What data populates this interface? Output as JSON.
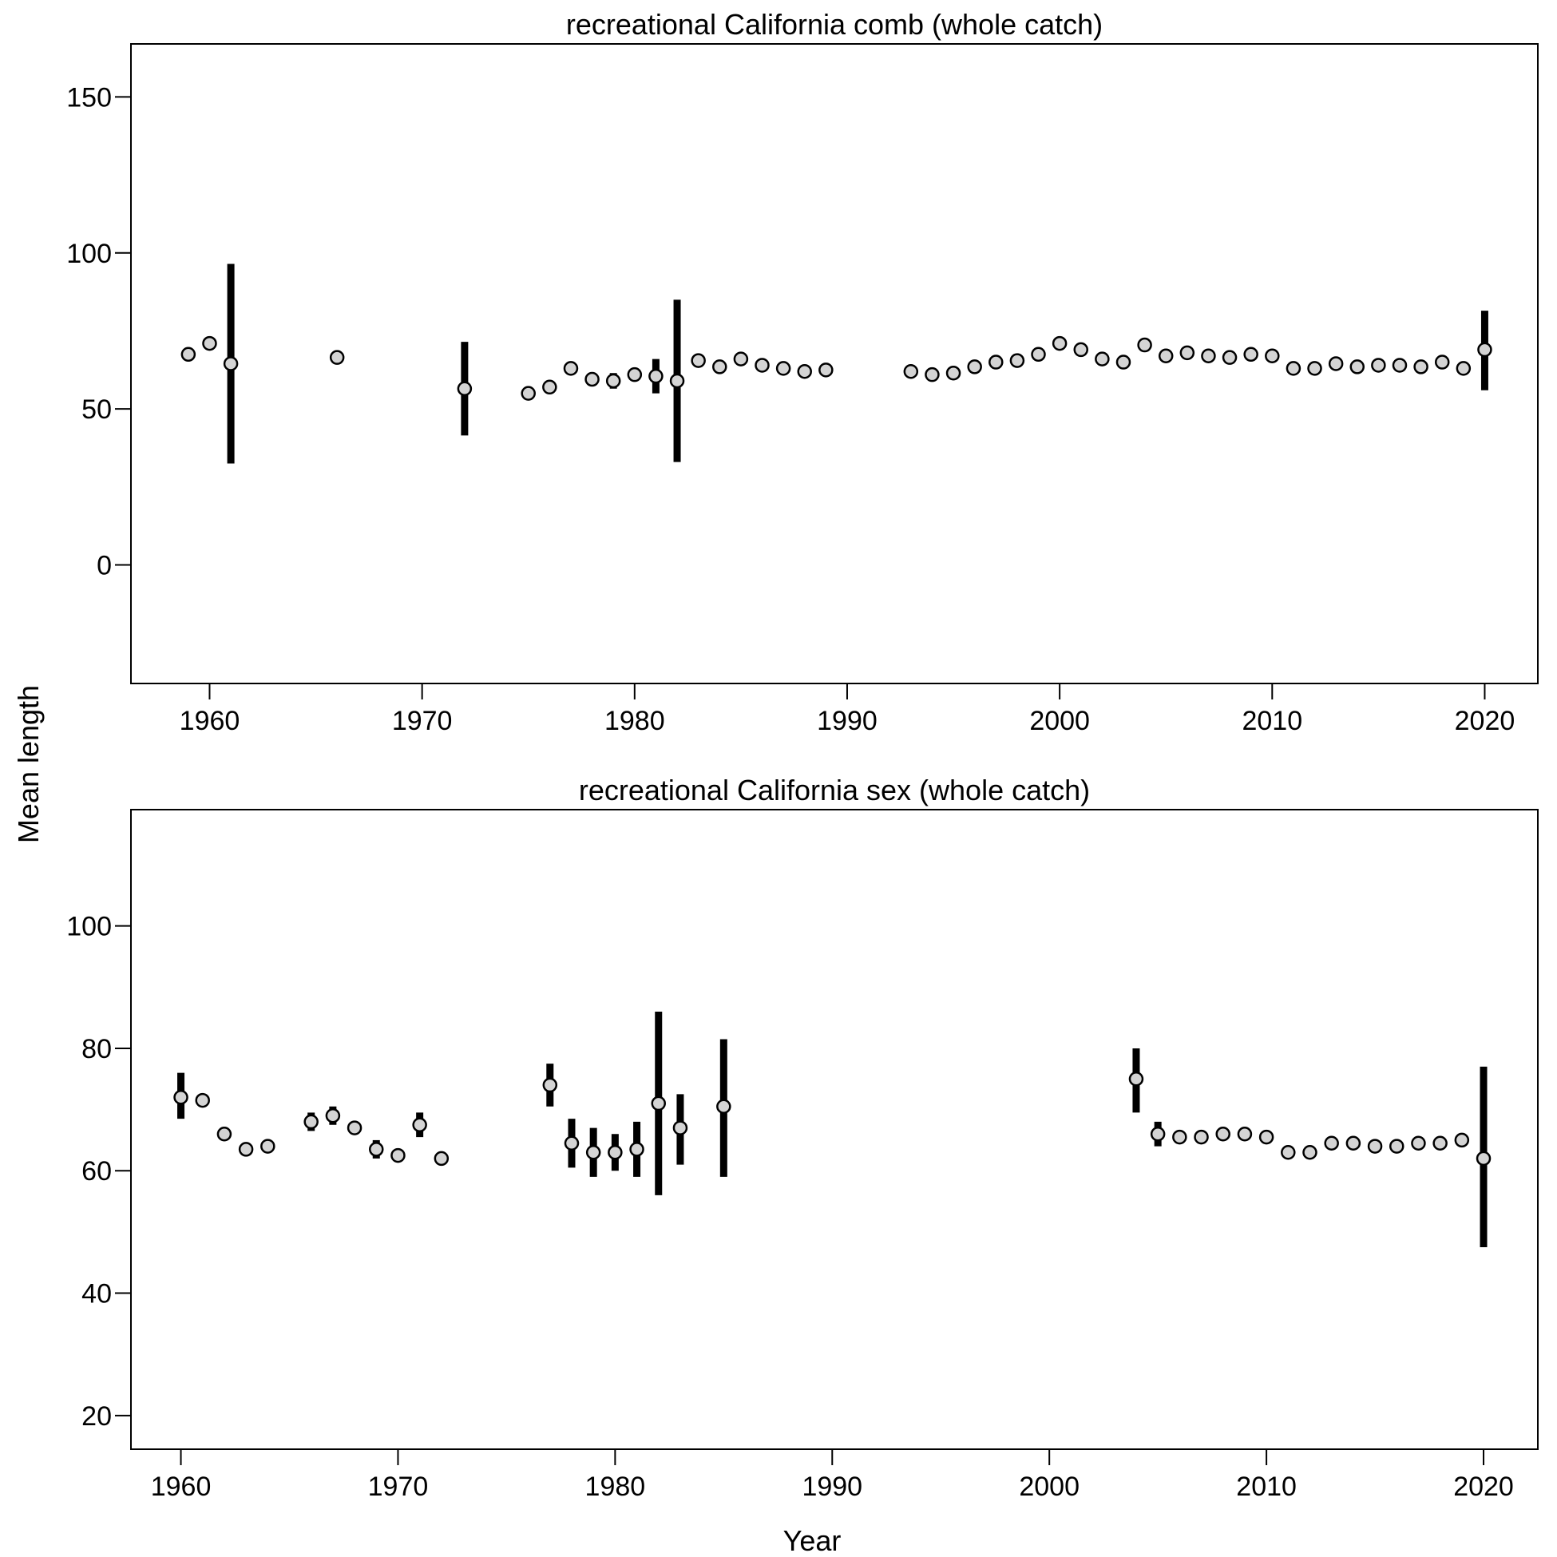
{
  "ylabel": "Mean length",
  "xlabel": "Year",
  "chart_data": [
    {
      "type": "scatter",
      "title": "recreational California comb (whole catch)",
      "xlim": [
        1956.3,
        2022.5
      ],
      "ylim": [
        -38,
        167
      ],
      "xticks": [
        1960,
        1970,
        1980,
        1990,
        2000,
        2010,
        2020
      ],
      "yticks": [
        0,
        50,
        100,
        150
      ],
      "errorbars": "lower/upper interval for each year",
      "points": [
        {
          "x": 1959,
          "y": 67.5
        },
        {
          "x": 1960,
          "y": 71
        },
        {
          "x": 1961,
          "y": 64.5,
          "lo": 32.5,
          "hi": 96.5
        },
        {
          "x": 1966,
          "y": 66.5,
          "lo": 64.5,
          "hi": 68.5
        },
        {
          "x": 1972,
          "y": 56.5,
          "lo": 41.5,
          "hi": 71.5
        },
        {
          "x": 1975,
          "y": 55
        },
        {
          "x": 1976,
          "y": 57
        },
        {
          "x": 1977,
          "y": 63
        },
        {
          "x": 1978,
          "y": 59.5
        },
        {
          "x": 1979,
          "y": 59,
          "lo": 56.5,
          "hi": 61.5
        },
        {
          "x": 1980,
          "y": 61
        },
        {
          "x": 1981,
          "y": 60.5,
          "lo": 55,
          "hi": 66
        },
        {
          "x": 1982,
          "y": 59,
          "lo": 33,
          "hi": 85
        },
        {
          "x": 1983,
          "y": 65.5
        },
        {
          "x": 1984,
          "y": 63.5
        },
        {
          "x": 1985,
          "y": 66
        },
        {
          "x": 1986,
          "y": 64
        },
        {
          "x": 1987,
          "y": 63
        },
        {
          "x": 1988,
          "y": 62
        },
        {
          "x": 1989,
          "y": 62.5
        },
        {
          "x": 1993,
          "y": 62
        },
        {
          "x": 1994,
          "y": 61
        },
        {
          "x": 1995,
          "y": 61.5
        },
        {
          "x": 1996,
          "y": 63.5
        },
        {
          "x": 1997,
          "y": 65
        },
        {
          "x": 1998,
          "y": 65.5
        },
        {
          "x": 1999,
          "y": 67.5
        },
        {
          "x": 2000,
          "y": 71
        },
        {
          "x": 2001,
          "y": 69
        },
        {
          "x": 2002,
          "y": 66
        },
        {
          "x": 2003,
          "y": 65
        },
        {
          "x": 2004,
          "y": 70.5
        },
        {
          "x": 2005,
          "y": 67
        },
        {
          "x": 2006,
          "y": 68
        },
        {
          "x": 2007,
          "y": 67
        },
        {
          "x": 2008,
          "y": 66.5
        },
        {
          "x": 2009,
          "y": 67.5
        },
        {
          "x": 2010,
          "y": 67
        },
        {
          "x": 2011,
          "y": 63
        },
        {
          "x": 2012,
          "y": 63
        },
        {
          "x": 2013,
          "y": 64.5
        },
        {
          "x": 2014,
          "y": 63.5
        },
        {
          "x": 2015,
          "y": 64
        },
        {
          "x": 2016,
          "y": 64
        },
        {
          "x": 2017,
          "y": 63.5
        },
        {
          "x": 2018,
          "y": 65
        },
        {
          "x": 2019,
          "y": 63
        },
        {
          "x": 2020,
          "y": 69,
          "lo": 56,
          "hi": 81.5
        }
      ]
    },
    {
      "type": "scatter",
      "title": "recreational California sex (whole catch)",
      "xlim": [
        1957.7,
        2022.5
      ],
      "ylim": [
        14.5,
        119
      ],
      "xticks": [
        1960,
        1970,
        1980,
        1990,
        2000,
        2010,
        2020
      ],
      "yticks": [
        20,
        40,
        60,
        80,
        100
      ],
      "errorbars": "lower/upper interval for each year",
      "points": [
        {
          "x": 1960,
          "y": 72,
          "lo": 68.5,
          "hi": 76
        },
        {
          "x": 1961,
          "y": 71.5
        },
        {
          "x": 1962,
          "y": 66
        },
        {
          "x": 1963,
          "y": 63.5
        },
        {
          "x": 1964,
          "y": 64
        },
        {
          "x": 1966,
          "y": 68,
          "lo": 66.5,
          "hi": 69.5
        },
        {
          "x": 1967,
          "y": 69,
          "lo": 67.5,
          "hi": 70.5
        },
        {
          "x": 1968,
          "y": 67
        },
        {
          "x": 1969,
          "y": 63.5,
          "lo": 62,
          "hi": 65
        },
        {
          "x": 1970,
          "y": 62.5
        },
        {
          "x": 1971,
          "y": 67.5,
          "lo": 65.5,
          "hi": 69.5
        },
        {
          "x": 1972,
          "y": 62
        },
        {
          "x": 1977,
          "y": 74,
          "lo": 70.5,
          "hi": 77.5
        },
        {
          "x": 1978,
          "y": 64.5,
          "lo": 60.5,
          "hi": 68.5
        },
        {
          "x": 1979,
          "y": 63,
          "lo": 59,
          "hi": 67
        },
        {
          "x": 1980,
          "y": 63,
          "lo": 60,
          "hi": 66
        },
        {
          "x": 1981,
          "y": 63.5,
          "lo": 59,
          "hi": 68
        },
        {
          "x": 1982,
          "y": 71,
          "lo": 56,
          "hi": 86
        },
        {
          "x": 1983,
          "y": 67,
          "lo": 61,
          "hi": 72.5
        },
        {
          "x": 1985,
          "y": 70.5,
          "lo": 59,
          "hi": 81.5
        },
        {
          "x": 2004,
          "y": 75,
          "lo": 69.5,
          "hi": 80
        },
        {
          "x": 2005,
          "y": 66,
          "lo": 64,
          "hi": 68
        },
        {
          "x": 2006,
          "y": 65.5
        },
        {
          "x": 2007,
          "y": 65.5
        },
        {
          "x": 2008,
          "y": 66
        },
        {
          "x": 2009,
          "y": 66
        },
        {
          "x": 2010,
          "y": 65.5
        },
        {
          "x": 2011,
          "y": 63
        },
        {
          "x": 2012,
          "y": 63
        },
        {
          "x": 2013,
          "y": 64.5
        },
        {
          "x": 2014,
          "y": 64.5
        },
        {
          "x": 2015,
          "y": 64
        },
        {
          "x": 2016,
          "y": 64
        },
        {
          "x": 2017,
          "y": 64.5
        },
        {
          "x": 2018,
          "y": 64.5
        },
        {
          "x": 2019,
          "y": 65
        },
        {
          "x": 2020,
          "y": 62,
          "lo": 47.5,
          "hi": 77
        }
      ]
    }
  ]
}
